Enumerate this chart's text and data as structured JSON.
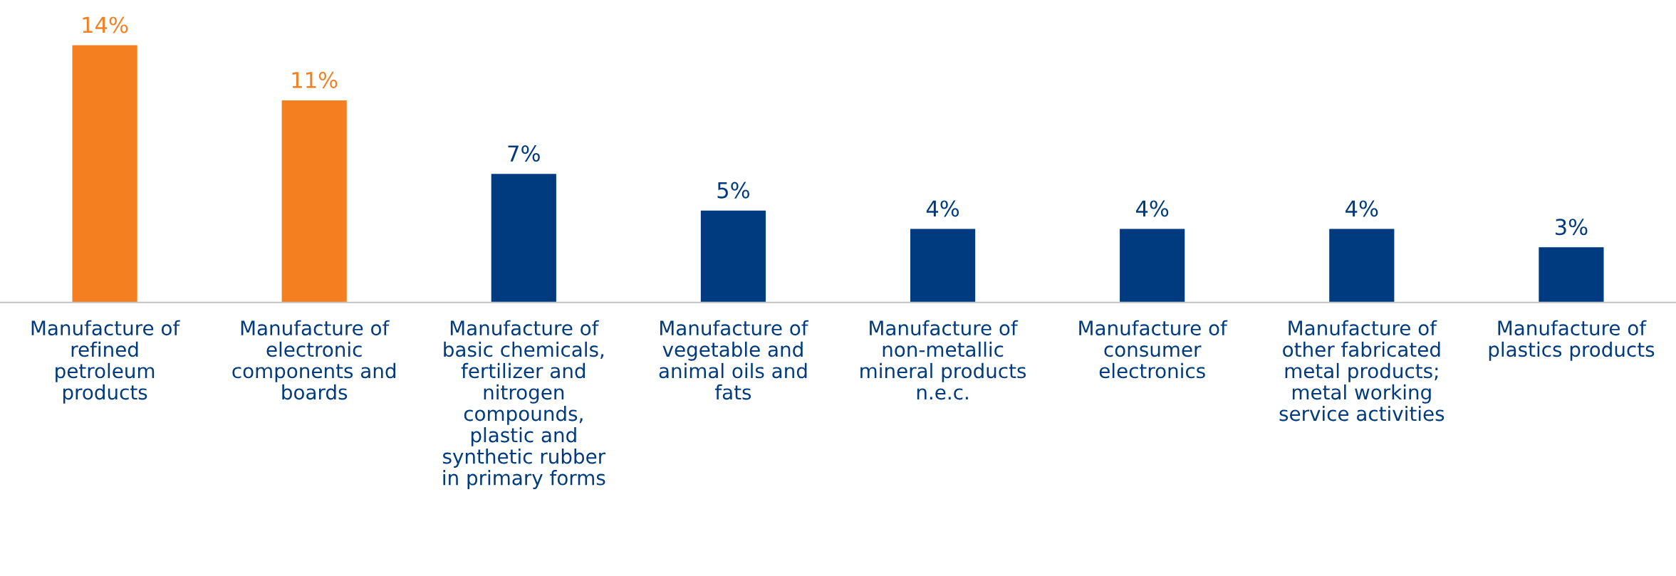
{
  "chart_data": {
    "type": "bar",
    "categories": [
      "Manufacture of\nrefined\npetroleum\nproducts",
      "Manufacture of\nelectronic\ncomponents and\nboards",
      "Manufacture of\nbasic chemicals,\nfertilizer and\nnitrogen\ncompounds,\nplastic and\nsynthetic rubber\nin primary forms",
      "Manufacture of\nvegetable and\nanimal oils and\nfats",
      "Manufacture of\nnon-metallic\nmineral products\nn.e.c.",
      "Manufacture of\nconsumer\nelectronics",
      "Manufacture of\nother fabricated\nmetal products;\nmetal working\nservice activities",
      "Manufacture of\nplastics products"
    ],
    "values": [
      14,
      11,
      7,
      5,
      4,
      4,
      4,
      3
    ],
    "value_labels": [
      "14%",
      "11%",
      "7%",
      "5%",
      "4%",
      "4%",
      "4%",
      "3%"
    ],
    "colors": [
      "#f47f20",
      "#f47f20",
      "#003b7f",
      "#003b7f",
      "#003b7f",
      "#003b7f",
      "#003b7f",
      "#003b7f"
    ],
    "grid": false,
    "legend": false
  }
}
